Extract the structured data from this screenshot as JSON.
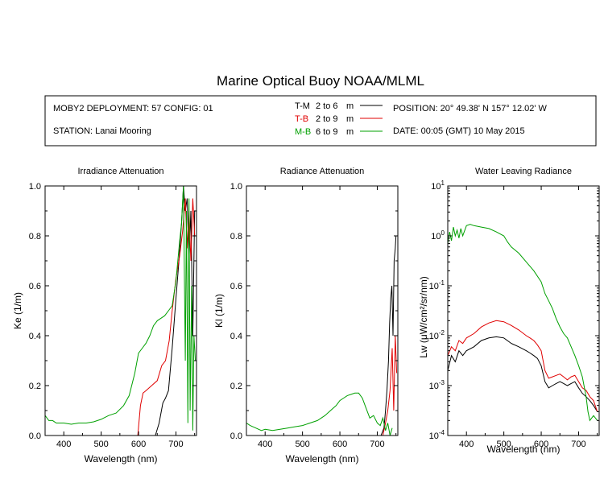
{
  "title": "Marine Optical Buoy NOAA/MLML",
  "info": {
    "deployment": "MOBY2 DEPLOYMENT: 57 CONFIG: 01",
    "station": "STATION: Lanai Mooring",
    "position": "POSITION: 20° 49.38' N   157° 12.02' W",
    "date": "DATE: 00:05 (GMT) 10 May 2015"
  },
  "colors": {
    "tm": "#000000",
    "tb": "#e00000",
    "mb": "#00a000"
  },
  "legend": [
    {
      "code": "T-M",
      "range": "2 to 6",
      "unit": "m",
      "color": "#000000"
    },
    {
      "code": "T-B",
      "range": "2 to 9",
      "unit": "m",
      "color": "#e00000"
    },
    {
      "code": "M-B",
      "range": "6 to 9",
      "unit": "m",
      "color": "#00a000"
    }
  ],
  "chart_data": [
    {
      "type": "line",
      "title": "Irradiance Attenuation",
      "xlabel": "Wavelength (nm)",
      "ylabel": "Ke  (1/m)",
      "xlim": [
        350,
        755
      ],
      "ylim": [
        0,
        1.0
      ],
      "xticks": [
        400,
        500,
        600,
        700
      ],
      "yticks": [
        0.0,
        0.2,
        0.4,
        0.6,
        0.8,
        1.0
      ],
      "ytick_labels": [
        "0.0",
        "0.2",
        "0.4",
        "0.6",
        "0.8",
        "1.0"
      ],
      "series": [
        {
          "name": "T-M",
          "color": "#000000",
          "x": [
            645,
            655,
            665,
            672,
            680,
            690,
            700,
            708,
            715,
            720,
            725,
            730,
            735,
            740,
            745,
            750
          ],
          "y": [
            0.0,
            0.05,
            0.13,
            0.15,
            0.18,
            0.35,
            0.55,
            0.7,
            0.85,
            1.0,
            0.9,
            0.95,
            0.7,
            0.9,
            0.4,
            0.9
          ]
        },
        {
          "name": "T-B",
          "color": "#e00000",
          "x": [
            598,
            605,
            612,
            620,
            635,
            650,
            662,
            672,
            682,
            690,
            700,
            710,
            718,
            725,
            730,
            735,
            740,
            745,
            750
          ],
          "y": [
            0.0,
            0.12,
            0.17,
            0.18,
            0.2,
            0.22,
            0.28,
            0.3,
            0.38,
            0.5,
            0.63,
            0.72,
            0.82,
            0.95,
            0.75,
            0.9,
            0.7,
            0.95,
            0.8
          ]
        },
        {
          "name": "M-B",
          "color": "#00a000",
          "x": [
            350,
            360,
            370,
            380,
            390,
            400,
            420,
            440,
            460,
            480,
            500,
            520,
            540,
            560,
            575,
            590,
            600,
            610,
            620,
            630,
            640,
            650,
            660,
            670,
            680,
            690,
            700,
            710,
            715,
            720,
            725,
            728,
            732,
            735,
            738,
            742,
            745,
            748,
            752
          ],
          "y": [
            0.08,
            0.06,
            0.06,
            0.05,
            0.05,
            0.05,
            0.045,
            0.05,
            0.05,
            0.055,
            0.065,
            0.08,
            0.09,
            0.12,
            0.16,
            0.25,
            0.33,
            0.35,
            0.37,
            0.4,
            0.44,
            0.46,
            0.47,
            0.48,
            0.5,
            0.52,
            0.62,
            0.78,
            0.85,
            1.0,
            0.3,
            0.9,
            0.05,
            0.95,
            0.1,
            0.6,
            0.02,
            0.4,
            0.3
          ]
        }
      ]
    },
    {
      "type": "line",
      "title": "Radiance Attenuation",
      "xlabel": "Wavelength (nm)",
      "ylabel": "Kl  (1/m)",
      "xlim": [
        350,
        755
      ],
      "ylim": [
        0,
        1.0
      ],
      "xticks": [
        400,
        500,
        600,
        700
      ],
      "yticks": [
        0.0,
        0.2,
        0.4,
        0.6,
        0.8,
        1.0
      ],
      "ytick_labels": [
        "0.0",
        "0.2",
        "0.4",
        "0.6",
        "0.8",
        "1.0"
      ],
      "series": [
        {
          "name": "T-M",
          "color": "#000000",
          "x": [
            710,
            718,
            722,
            726,
            730,
            733,
            736,
            739,
            742,
            745,
            748,
            750
          ],
          "y": [
            0.0,
            0.03,
            0.1,
            0.18,
            0.3,
            0.45,
            0.55,
            0.6,
            0.4,
            0.7,
            0.75,
            0.8
          ]
        },
        {
          "name": "T-B",
          "color": "#e00000",
          "x": [
            715,
            722,
            728,
            734,
            740,
            744,
            748,
            752
          ],
          "y": [
            0.0,
            0.05,
            0.1,
            0.18,
            0.35,
            0.1,
            0.4,
            0.25
          ]
        },
        {
          "name": "M-B",
          "color": "#00a000",
          "x": [
            350,
            360,
            375,
            390,
            400,
            420,
            440,
            460,
            480,
            500,
            520,
            540,
            560,
            575,
            590,
            600,
            610,
            620,
            630,
            640,
            650,
            660,
            670,
            680,
            690,
            700,
            708,
            715,
            722,
            728,
            734,
            740
          ],
          "y": [
            0.05,
            0.04,
            0.03,
            0.02,
            0.025,
            0.02,
            0.025,
            0.03,
            0.035,
            0.04,
            0.05,
            0.06,
            0.08,
            0.1,
            0.12,
            0.14,
            0.15,
            0.16,
            0.165,
            0.17,
            0.17,
            0.15,
            0.11,
            0.07,
            0.08,
            0.05,
            0.04,
            0.07,
            0.02,
            0.05,
            0.0,
            0.03
          ]
        }
      ]
    },
    {
      "type": "line",
      "title": "Water Leaving Radiance",
      "xlabel": "Wavelength (nm)",
      "ylabel": "Lw  (μW/cm²/sr/nm)",
      "xlim": [
        350,
        755
      ],
      "ylim": [
        0.0001,
        10
      ],
      "yscale": "log",
      "xticks": [
        400,
        500,
        600,
        700
      ],
      "yticks": [
        0.0001,
        0.001,
        0.01,
        0.1,
        1,
        10
      ],
      "ytick_labels": [
        {
          "base": "10",
          "exp": "-4"
        },
        {
          "base": "10",
          "exp": "-3"
        },
        {
          "base": "10",
          "exp": "-2"
        },
        {
          "base": "10",
          "exp": "-1"
        },
        {
          "base": "10",
          "exp": "0"
        },
        {
          "base": "10",
          "exp": "1"
        }
      ],
      "series": [
        {
          "name": "T-M",
          "color": "#000000",
          "x": [
            350,
            360,
            370,
            380,
            390,
            400,
            420,
            440,
            460,
            480,
            500,
            520,
            540,
            560,
            570,
            580,
            590,
            600,
            610,
            620,
            630,
            640,
            650,
            660,
            670,
            680,
            690,
            700,
            710,
            720,
            730,
            740,
            750
          ],
          "y": [
            0.002,
            0.004,
            0.003,
            0.005,
            0.004,
            0.005,
            0.006,
            0.008,
            0.009,
            0.0095,
            0.009,
            0.007,
            0.006,
            0.005,
            0.0045,
            0.004,
            0.0035,
            0.0025,
            0.0012,
            0.0009,
            0.001,
            0.0011,
            0.0012,
            0.0011,
            0.001,
            0.0011,
            0.0012,
            0.0009,
            0.0007,
            0.0006,
            0.0005,
            0.0004,
            0.0003
          ]
        },
        {
          "name": "T-B",
          "color": "#e00000",
          "x": [
            350,
            360,
            370,
            380,
            390,
            400,
            420,
            440,
            460,
            480,
            500,
            520,
            540,
            560,
            570,
            580,
            590,
            600,
            610,
            620,
            630,
            640,
            650,
            660,
            670,
            680,
            690,
            700,
            710,
            720,
            730,
            740,
            750
          ],
          "y": [
            0.004,
            0.006,
            0.005,
            0.008,
            0.007,
            0.009,
            0.011,
            0.015,
            0.018,
            0.02,
            0.019,
            0.016,
            0.013,
            0.01,
            0.009,
            0.008,
            0.0065,
            0.005,
            0.002,
            0.0014,
            0.0015,
            0.0016,
            0.0017,
            0.0015,
            0.0013,
            0.0015,
            0.0016,
            0.0012,
            0.0009,
            0.0008,
            0.0006,
            0.0005,
            0.0003
          ]
        },
        {
          "name": "M-B",
          "color": "#00a000",
          "x": [
            350,
            355,
            360,
            365,
            370,
            375,
            380,
            385,
            390,
            400,
            410,
            420,
            440,
            460,
            480,
            500,
            510,
            520,
            540,
            560,
            580,
            600,
            610,
            620,
            630,
            640,
            650,
            660,
            670,
            680,
            690,
            700,
            710,
            720,
            725,
            730,
            740,
            750
          ],
          "y": [
            0.7,
            1.2,
            0.8,
            1.5,
            1.0,
            1.3,
            0.9,
            1.4,
            1.0,
            1.6,
            1.7,
            1.6,
            1.5,
            1.4,
            1.2,
            1.0,
            0.75,
            0.6,
            0.45,
            0.3,
            0.2,
            0.12,
            0.07,
            0.05,
            0.035,
            0.022,
            0.015,
            0.011,
            0.009,
            0.006,
            0.004,
            0.0025,
            0.0015,
            0.0006,
            0.0003,
            0.0002,
            0.00025,
            0.0002
          ]
        }
      ]
    }
  ]
}
